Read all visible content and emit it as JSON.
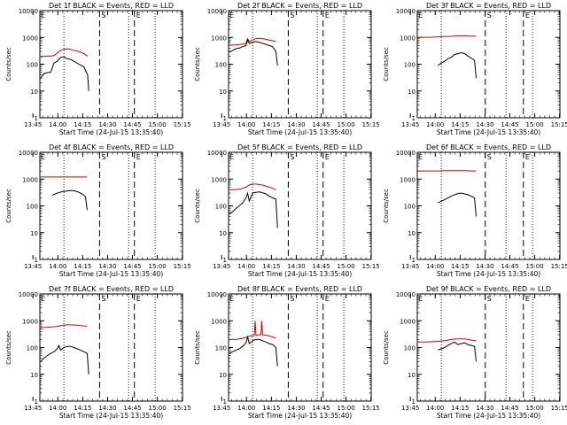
{
  "figure": {
    "ylabel": "Counts/sec",
    "xlabel": "Start Time (24-Jul-15 13:35:40)",
    "title_suffix": " BLACK = Events, RED = LLD",
    "series_names": [
      "Events",
      "LLD"
    ],
    "series_colors": {
      "events": "#000000",
      "lld": "#d40000"
    },
    "flag_labels": {
      "start": "E",
      "mid": "S",
      "end": "E"
    }
  },
  "chart_data": [
    {
      "type": "line",
      "title": "Det 1f BLACK = Events, RED = LLD",
      "detector": "Det 1f",
      "xlabel": "Start Time (24-Jul-15 13:35:40)",
      "ylabel": "Counts/sec",
      "x_ticks": [
        "13:45",
        "14:00",
        "14:15",
        "14:30",
        "14:45",
        "15:00",
        "15:15"
      ],
      "y_ticks": [
        "1",
        "10",
        "100",
        "1000",
        "10000"
      ],
      "ylim": [
        1,
        10000
      ],
      "y_scale": "log",
      "x_minutes_range": [
        13.5,
        99.5
      ],
      "events": {
        "x": [
          14,
          16,
          18,
          20,
          22,
          24,
          26,
          28,
          30,
          32,
          34,
          37,
          40,
          42.3,
          43
        ],
        "y": [
          30,
          45,
          48,
          50,
          110,
          130,
          180,
          190,
          160,
          150,
          130,
          100,
          80,
          40,
          10
        ]
      },
      "lld": {
        "x": [
          14,
          16,
          18,
          20,
          22,
          24,
          26,
          28,
          30,
          32,
          34,
          37,
          40,
          42.3
        ],
        "y": [
          190,
          195,
          200,
          200,
          210,
          260,
          330,
          360,
          370,
          360,
          330,
          300,
          250,
          200
        ]
      },
      "dotted_lines": [
        13.5,
        28.0,
        67.0,
        83.0
      ],
      "dashed_lines": [
        49.5,
        70.5
      ]
    },
    {
      "type": "line",
      "title": "Det 2f BLACK = Events, RED = LLD",
      "detector": "Det 2f",
      "xlabel": "Start Time (24-Jul-15 13:35:40)",
      "ylabel": "Counts/sec",
      "x_ticks": [
        "13:45",
        "14:00",
        "14:15",
        "14:30",
        "14:45",
        "15:00",
        "15:15"
      ],
      "y_ticks": [
        "1",
        "10",
        "100",
        "1000",
        "10000"
      ],
      "ylim": [
        1,
        10000
      ],
      "y_scale": "log",
      "x_minutes_range": [
        13.5,
        99.5
      ],
      "events": {
        "x": [
          14,
          16,
          18,
          20,
          22,
          24,
          25,
          26,
          28,
          30,
          32,
          34,
          36,
          38,
          40,
          42,
          43
        ],
        "y": [
          280,
          330,
          380,
          400,
          450,
          500,
          800,
          600,
          650,
          700,
          650,
          600,
          550,
          500,
          450,
          300,
          90
        ]
      },
      "lld": {
        "x": [
          14,
          16,
          18,
          20,
          22,
          24,
          25,
          26,
          28,
          30,
          32,
          34,
          36,
          38,
          40,
          42
        ],
        "y": [
          500,
          520,
          520,
          540,
          560,
          600,
          900,
          700,
          800,
          900,
          900,
          900,
          850,
          800,
          750,
          700
        ]
      },
      "dotted_lines": [
        13.5,
        28.0,
        67.0,
        83.0
      ],
      "dashed_lines": [
        49.5,
        70.5
      ]
    },
    {
      "type": "line",
      "title": "Det 3f BLACK = Events, RED = LLD",
      "detector": "Det 3f",
      "xlabel": "Start Time (24-Jul-15 13:35:40)",
      "ylabel": "Counts/sec",
      "x_ticks": [
        "13:45",
        "14:00",
        "14:15",
        "14:30",
        "14:45",
        "15:00",
        "15:15"
      ],
      "y_ticks": [
        "1",
        "10",
        "100",
        "1000",
        "10000"
      ],
      "ylim": [
        1,
        10000
      ],
      "y_scale": "log",
      "x_minutes_range": [
        13.5,
        99.5
      ],
      "events": {
        "x": [
          26,
          28,
          30,
          32,
          34,
          36,
          38,
          40,
          42,
          44,
          46,
          48,
          49
        ],
        "y": [
          90,
          110,
          130,
          160,
          180,
          230,
          250,
          270,
          250,
          200,
          170,
          140,
          30
        ]
      },
      "lld": {
        "x": [
          14,
          18,
          22,
          26,
          30,
          34,
          38,
          42,
          46,
          49
        ],
        "y": [
          1000,
          1010,
          1020,
          1050,
          1080,
          1100,
          1150,
          1150,
          1120,
          1100
        ]
      },
      "dotted_lines": [
        13.5,
        28.0,
        67.0,
        83.0
      ],
      "dashed_lines": [
        54.5,
        77.5
      ]
    },
    {
      "type": "line",
      "title": "Det 4f BLACK = Events, RED = LLD",
      "detector": "Det 4f",
      "xlabel": "Start Time (24-Jul-15 13:35:40)",
      "ylabel": "Counts/sec",
      "x_ticks": [
        "13:45",
        "14:00",
        "14:15",
        "14:30",
        "14:45",
        "15:00",
        "15:15"
      ],
      "y_ticks": [
        "1",
        "10",
        "100",
        "1000",
        "10000"
      ],
      "ylim": [
        1,
        10000
      ],
      "y_scale": "log",
      "x_minutes_range": [
        13.5,
        99.5
      ],
      "events": {
        "x": [
          21,
          24,
          27,
          30,
          33,
          36,
          39,
          41,
          42
        ],
        "y": [
          250,
          300,
          340,
          360,
          380,
          340,
          280,
          220,
          70
        ]
      },
      "lld": {
        "x": [
          14,
          18,
          22,
          26,
          30,
          34,
          38,
          42
        ],
        "y": [
          1200,
          1200,
          1200,
          1200,
          1200,
          1200,
          1200,
          1200
        ]
      },
      "dotted_lines": [
        13.5,
        28.0,
        67.0,
        83.0
      ],
      "dashed_lines": [
        49.5,
        70.5
      ]
    },
    {
      "type": "line",
      "title": "Det 5f BLACK = Events, RED = LLD",
      "detector": "Det 5f",
      "xlabel": "Start Time (24-Jul-15 13:35:40)",
      "ylabel": "Counts/sec",
      "x_ticks": [
        "13:45",
        "14:00",
        "14:15",
        "14:30",
        "14:45",
        "15:00",
        "15:15"
      ],
      "y_ticks": [
        "1",
        "10",
        "100",
        "1000",
        "10000"
      ],
      "ylim": [
        1,
        10000
      ],
      "y_scale": "log",
      "x_minutes_range": [
        13.5,
        99.5
      ],
      "events": {
        "x": [
          14,
          16,
          18,
          20,
          22,
          24,
          25,
          26,
          28,
          30,
          32,
          34,
          36,
          38,
          40,
          42,
          43
        ],
        "y": [
          50,
          60,
          80,
          100,
          130,
          200,
          300,
          150,
          300,
          320,
          330,
          310,
          280,
          230,
          200,
          180,
          15
        ]
      },
      "lld": {
        "x": [
          14,
          16,
          18,
          20,
          22,
          24,
          26,
          28,
          30,
          32,
          34,
          36,
          38,
          40,
          42
        ],
        "y": [
          400,
          400,
          410,
          420,
          450,
          500,
          600,
          650,
          650,
          620,
          600,
          550,
          500,
          450,
          400
        ]
      },
      "dotted_lines": [
        13.5,
        28.0,
        67.0,
        83.0
      ],
      "dashed_lines": [
        49.5,
        70.5
      ]
    },
    {
      "type": "line",
      "title": "Det 6f BLACK = Events, RED = LLD",
      "detector": "Det 6f",
      "xlabel": "Start Time (24-Jul-15 13:35:40)",
      "ylabel": "Counts/sec",
      "x_ticks": [
        "13:45",
        "14:00",
        "14:15",
        "14:30",
        "14:45",
        "15:00",
        "15:15"
      ],
      "y_ticks": [
        "1",
        "10",
        "100",
        "1000",
        "10000"
      ],
      "ylim": [
        1,
        10000
      ],
      "y_scale": "log",
      "x_minutes_range": [
        13.5,
        99.5
      ],
      "events": {
        "x": [
          26,
          28,
          30,
          32,
          34,
          36,
          38,
          40,
          42,
          44,
          46,
          48,
          49
        ],
        "y": [
          130,
          150,
          170,
          200,
          230,
          260,
          290,
          300,
          280,
          260,
          230,
          200,
          40
        ]
      },
      "lld": {
        "x": [
          14,
          18,
          22,
          26,
          30,
          34,
          38,
          42,
          46,
          49
        ],
        "y": [
          2000,
          2000,
          2000,
          2000,
          2050,
          2050,
          2050,
          2050,
          2000,
          2000
        ]
      },
      "dotted_lines": [
        13.5,
        28.0,
        67.0,
        83.0
      ],
      "dashed_lines": [
        54.5,
        77.5
      ]
    },
    {
      "type": "line",
      "title": "Det 7f BLACK = Events, RED = LLD",
      "detector": "Det 7f",
      "xlabel": "Start Time (24-Jul-15 13:35:40)",
      "ylabel": "Counts/sec",
      "x_ticks": [
        "13:45",
        "14:00",
        "14:15",
        "14:30",
        "14:45",
        "15:00",
        "15:15"
      ],
      "y_ticks": [
        "1",
        "10",
        "100",
        "1000",
        "10000"
      ],
      "ylim": [
        1,
        10000
      ],
      "y_scale": "log",
      "x_minutes_range": [
        13.5,
        99.5
      ],
      "events": {
        "x": [
          14,
          16,
          18,
          20,
          22,
          24,
          25,
          26,
          28,
          30,
          32,
          34,
          36,
          38,
          40,
          42,
          43
        ],
        "y": [
          30,
          40,
          50,
          60,
          70,
          90,
          120,
          80,
          100,
          110,
          110,
          100,
          90,
          80,
          70,
          60,
          10
        ]
      },
      "lld": {
        "x": [
          14,
          16,
          18,
          20,
          22,
          24,
          26,
          28,
          30,
          32,
          34,
          36,
          38,
          40,
          42
        ],
        "y": [
          550,
          560,
          570,
          580,
          600,
          620,
          650,
          680,
          700,
          700,
          690,
          680,
          660,
          640,
          620
        ]
      },
      "dotted_lines": [
        13.5,
        28.0,
        67.0,
        83.0
      ],
      "dashed_lines": [
        49.5,
        70.5
      ]
    },
    {
      "type": "line",
      "title": "Det 8f BLACK = Events, RED = LLD",
      "detector": "Det 8f",
      "xlabel": "Start Time (24-Jul-15 13:35:40)",
      "ylabel": "Counts/sec",
      "x_ticks": [
        "13:45",
        "14:00",
        "14:15",
        "14:30",
        "14:45",
        "15:00",
        "15:15"
      ],
      "y_ticks": [
        "1",
        "10",
        "100",
        "1000",
        "10000"
      ],
      "ylim": [
        1,
        10000
      ],
      "y_scale": "log",
      "x_minutes_range": [
        13.5,
        99.5
      ],
      "events": {
        "x": [
          14,
          16,
          18,
          20,
          22,
          24,
          25,
          26,
          28,
          30,
          32,
          34,
          36,
          38,
          40,
          42,
          43
        ],
        "y": [
          60,
          70,
          80,
          90,
          110,
          150,
          250,
          140,
          180,
          200,
          200,
          180,
          160,
          140,
          130,
          100,
          20
        ]
      },
      "lld": {
        "x": [
          14,
          16,
          18,
          20,
          22,
          24,
          26,
          28,
          29,
          29.5,
          30,
          31,
          32,
          33,
          33.5,
          34,
          36,
          38,
          40,
          42
        ],
        "y": [
          200,
          200,
          200,
          210,
          220,
          240,
          260,
          280,
          280,
          1000,
          280,
          300,
          300,
          300,
          1000,
          300,
          290,
          270,
          250,
          220
        ]
      },
      "dotted_lines": [
        13.5,
        28.0,
        67.0,
        83.0
      ],
      "dashed_lines": [
        49.5,
        70.5
      ]
    },
    {
      "type": "line",
      "title": "Det 9f BLACK = Events, RED = LLD",
      "detector": "Det 9f",
      "xlabel": "Start Time (24-Jul-15 13:35:40)",
      "ylabel": "Counts/sec",
      "x_ticks": [
        "13:45",
        "14:00",
        "14:15",
        "14:30",
        "14:45",
        "15:00",
        "15:15"
      ],
      "y_ticks": [
        "1",
        "10",
        "100",
        "1000",
        "10000"
      ],
      "ylim": [
        1,
        10000
      ],
      "y_scale": "log",
      "x_minutes_range": [
        13.5,
        99.5
      ],
      "events": {
        "x": [
          26,
          28,
          30,
          32,
          34,
          36,
          38,
          40,
          42,
          44,
          46,
          48,
          49
        ],
        "y": [
          80,
          90,
          100,
          120,
          140,
          160,
          130,
          140,
          150,
          130,
          120,
          110,
          30
        ]
      },
      "lld": {
        "x": [
          14,
          18,
          22,
          26,
          30,
          34,
          38,
          42,
          46,
          49
        ],
        "y": [
          160,
          160,
          165,
          170,
          180,
          200,
          210,
          210,
          190,
          180
        ]
      },
      "dotted_lines": [
        13.5,
        28.0,
        67.0,
        83.0
      ],
      "dashed_lines": [
        54.5,
        77.5
      ]
    }
  ]
}
